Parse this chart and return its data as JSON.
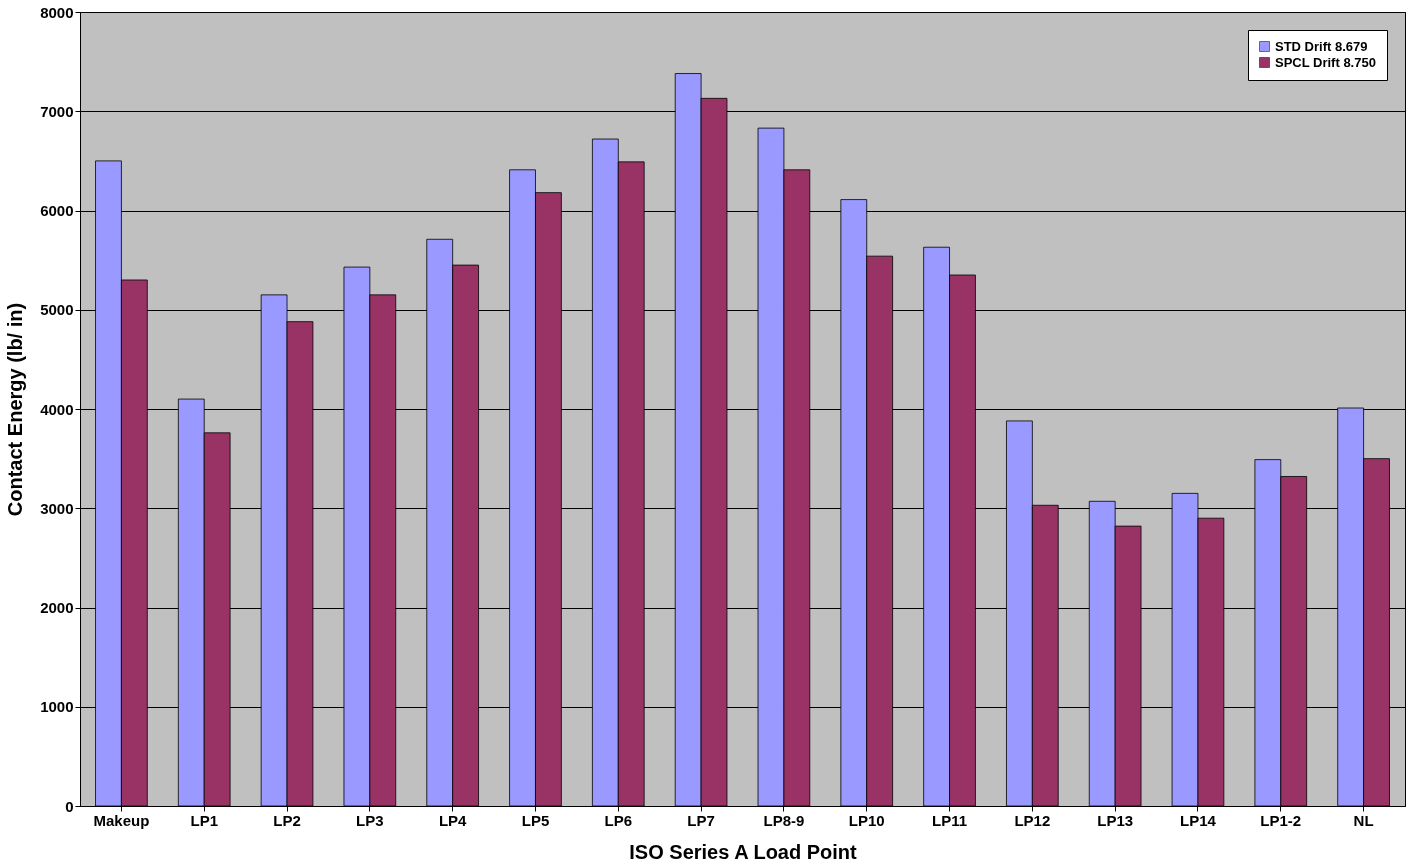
{
  "chart_data": {
    "type": "bar",
    "xlabel": "ISO Series A Load Point",
    "ylabel": "Contact Energy (lb/ in)",
    "categories": [
      "Makeup",
      "LP1",
      "LP2",
      "LP3",
      "LP4",
      "LP5",
      "LP6",
      "LP7",
      "LP8-9",
      "LP10",
      "LP11",
      "LP12",
      "LP13",
      "LP14",
      "LP1-2",
      "NL"
    ],
    "series": [
      {
        "name": "STD  Drift 8.679",
        "color": "#9999ff",
        "values": [
          6500,
          4100,
          5150,
          5430,
          5710,
          6410,
          6720,
          7380,
          6830,
          6110,
          5630,
          3880,
          3070,
          3150,
          3490,
          4010
        ]
      },
      {
        "name": "SPCL Drift 8.750",
        "color": "#993366",
        "values": [
          5300,
          3760,
          4880,
          5150,
          5450,
          6180,
          6490,
          7130,
          6410,
          5540,
          5350,
          3030,
          2820,
          2900,
          3320,
          3500
        ]
      }
    ],
    "ylim": [
      0,
      8000
    ],
    "yticks": [
      0,
      1000,
      2000,
      3000,
      4000,
      5000,
      6000,
      7000,
      8000
    ],
    "grid": "y",
    "legend": "top right"
  }
}
